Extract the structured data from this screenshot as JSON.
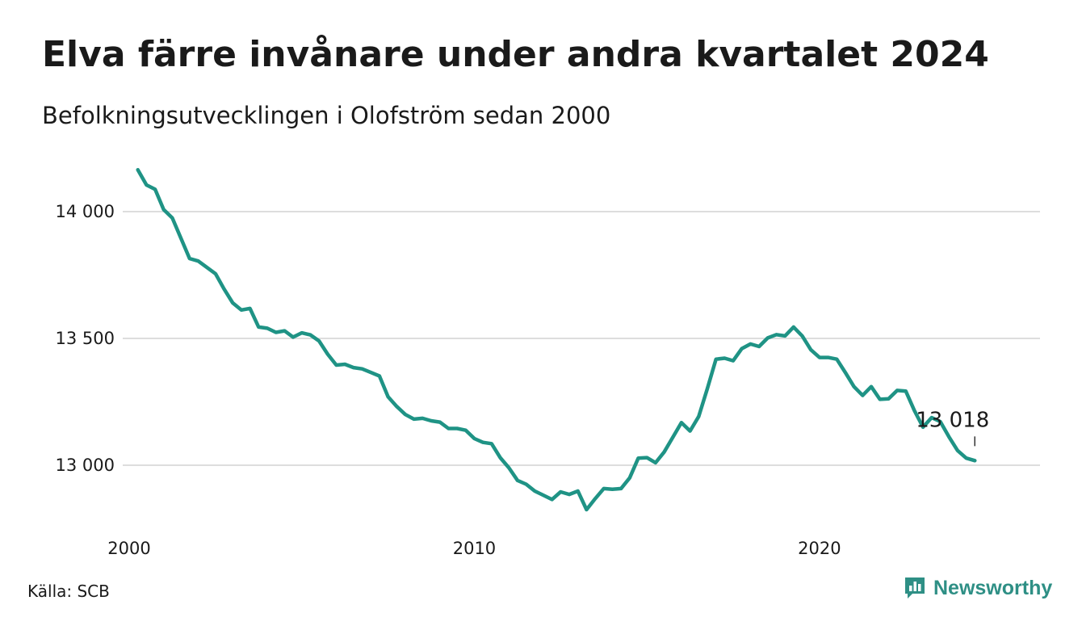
{
  "header": {
    "title": "Elva färre invånare under andra kvartalet 2024",
    "subtitle": "Befolkningsutvecklingen i Olofström sedan 2000"
  },
  "footer": {
    "source": "Källa: SCB",
    "brand": "Newsworthy",
    "brand_icon": "newsworthy-logo-icon"
  },
  "colors": {
    "line": "#1f9385",
    "grid": "#dddddd",
    "brand": "#2e8f85"
  },
  "chart_data": {
    "type": "line",
    "title": "Elva färre invånare under andra kvartalet 2024",
    "subtitle": "Befolkningsutvecklingen i Olofström sedan 2000",
    "xlabel": "",
    "ylabel": "",
    "x_ticks": [
      {
        "value": 2000,
        "label": "2000"
      },
      {
        "value": 2010,
        "label": "2010"
      },
      {
        "value": 2020,
        "label": "2020"
      }
    ],
    "y_ticks": [
      {
        "value": 13000,
        "label": "13 000"
      },
      {
        "value": 13500,
        "label": "13 500"
      },
      {
        "value": 14000,
        "label": "14 000"
      }
    ],
    "xlim": [
      2000,
      2025.5
    ],
    "ylim": [
      12800,
      14200
    ],
    "grid": "horizontal",
    "legend": "none",
    "annotation": {
      "label": "13 018",
      "value": 13018
    },
    "series": [
      {
        "x": [
          2000.25,
          2000.5,
          2000.75,
          2001.0,
          2001.25,
          2001.5,
          2001.75,
          2002.0,
          2002.25,
          2002.5,
          2002.75,
          2003.0,
          2003.25,
          2003.5,
          2003.75,
          2004.0,
          2004.25,
          2004.5,
          2004.75,
          2005.0,
          2005.25,
          2005.5,
          2005.75,
          2006.0,
          2006.25,
          2006.5,
          2006.75,
          2007.0,
          2007.25,
          2007.5,
          2007.75,
          2008.0,
          2008.25,
          2008.5,
          2008.75,
          2009.0,
          2009.25,
          2009.5,
          2009.75,
          2010.0,
          2010.25,
          2010.5,
          2010.75,
          2011.0,
          2011.25,
          2011.5,
          2011.75,
          2012.0,
          2012.25,
          2012.5,
          2012.75,
          2013.0,
          2013.25,
          2013.5,
          2013.75,
          2014.0,
          2014.25,
          2014.5,
          2014.75,
          2015.0,
          2015.25,
          2015.5,
          2015.75,
          2016.0,
          2016.25,
          2016.5,
          2016.75,
          2017.0,
          2017.25,
          2017.5,
          2017.75,
          2018.0,
          2018.25,
          2018.5,
          2018.75,
          2019.0,
          2019.25,
          2019.5,
          2019.75,
          2020.0,
          2020.25,
          2020.5,
          2020.75,
          2021.0,
          2021.25,
          2021.5,
          2021.75,
          2022.0,
          2022.25,
          2022.5,
          2022.75,
          2023.0,
          2023.25,
          2023.5,
          2023.75,
          2024.0,
          2024.25,
          2024.5
        ],
        "values": [
          14165,
          14105,
          14088,
          14008,
          13975,
          13895,
          13815,
          13805,
          13780,
          13755,
          13695,
          13640,
          13612,
          13618,
          13545,
          13540,
          13524,
          13530,
          13505,
          13522,
          13514,
          13490,
          13438,
          13395,
          13398,
          13385,
          13380,
          13366,
          13352,
          13270,
          13232,
          13200,
          13182,
          13185,
          13175,
          13170,
          13145,
          13145,
          13138,
          13105,
          13090,
          13085,
          13030,
          12990,
          12940,
          12925,
          12898,
          12882,
          12865,
          12895,
          12885,
          12898,
          12825,
          12868,
          12908,
          12905,
          12908,
          12950,
          13028,
          13030,
          13010,
          13052,
          13110,
          13168,
          13135,
          13192,
          13302,
          13418,
          13422,
          13412,
          13460,
          13478,
          13468,
          13502,
          13515,
          13510,
          13545,
          13510,
          13455,
          13425,
          13425,
          13418,
          13365,
          13310,
          13275,
          13310,
          13260,
          13262,
          13295,
          13292,
          13215,
          13150,
          13188,
          13172,
          13112,
          13058,
          13028,
          13018
        ]
      }
    ]
  }
}
